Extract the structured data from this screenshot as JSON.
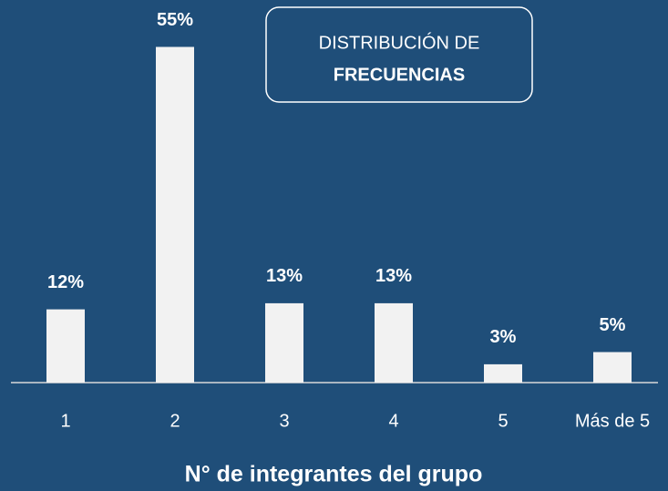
{
  "chart_data": {
    "type": "bar",
    "title_lines": [
      "DISTRIBUCIÓN DE",
      "FRECUENCIAS"
    ],
    "x_label": "N° de integrantes del grupo",
    "categories": [
      "1",
      "2",
      "3",
      "4",
      "5",
      "Más de 5"
    ],
    "values": [
      12,
      55,
      13,
      13,
      3,
      5
    ],
    "value_labels": [
      "12%",
      "55%",
      "13%",
      "13%",
      "3%",
      "5%"
    ],
    "color": "#f2f2f2"
  }
}
